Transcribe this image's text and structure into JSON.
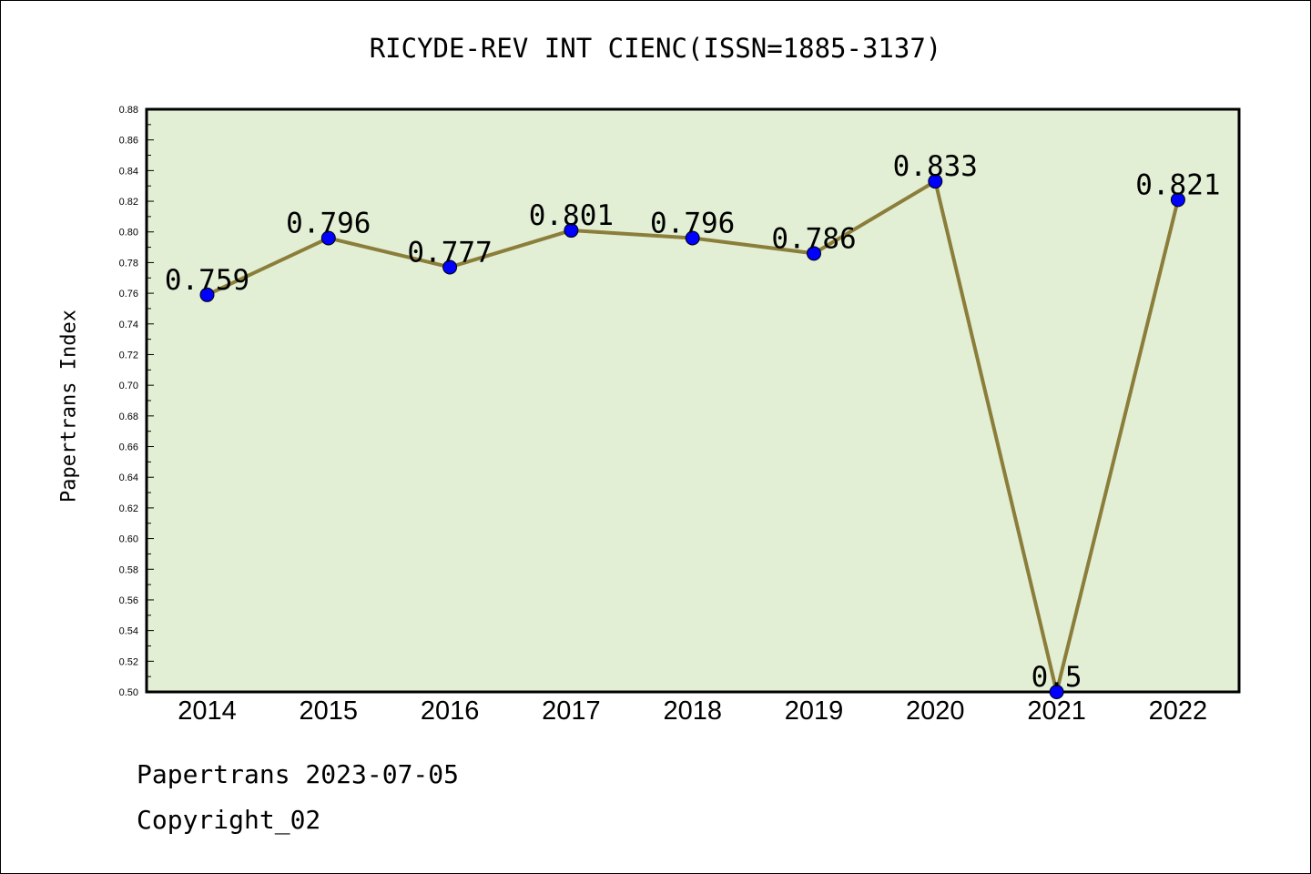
{
  "chart_data": {
    "type": "line",
    "title": "RICYDE-REV INT CIENC(ISSN=1885-3137)",
    "ylabel": "Papertrans Index",
    "xlabel": "",
    "categories": [
      "2014",
      "2015",
      "2016",
      "2017",
      "2018",
      "2019",
      "2020",
      "2021",
      "2022"
    ],
    "series": [
      {
        "values": [
          0.759,
          0.796,
          0.777,
          0.801,
          0.796,
          0.786,
          0.833,
          0.5,
          0.821
        ]
      }
    ],
    "data_labels": [
      "0.759",
      "0.796",
      "0.777",
      "0.801",
      "0.796",
      "0.786",
      "0.833",
      "0.5",
      "0.821"
    ],
    "ylim": [
      0.5,
      0.88
    ],
    "yticks": [
      "0.50",
      "0.52",
      "0.54",
      "0.56",
      "0.58",
      "0.60",
      "0.62",
      "0.64",
      "0.66",
      "0.68",
      "0.70",
      "0.72",
      "0.74",
      "0.76",
      "0.78",
      "0.80",
      "0.82",
      "0.84",
      "0.86",
      "0.88"
    ],
    "grid": false,
    "colors": {
      "plot_background": "#e2efd5",
      "line": "#8b7d3a",
      "marker": "#0000ff"
    }
  },
  "footer": {
    "line1": "Papertrans 2023-07-05",
    "line2": "Copyright_02"
  }
}
